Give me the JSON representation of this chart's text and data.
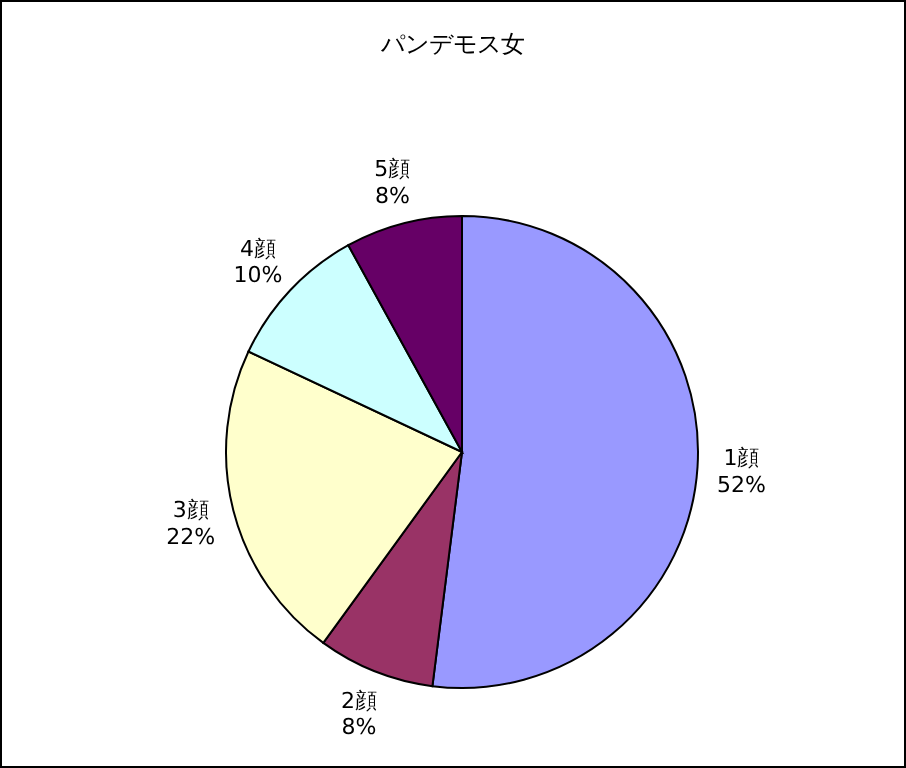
{
  "chart_data": {
    "type": "pie",
    "title": "パンデモス女",
    "categories": [
      "1顔",
      "2顔",
      "3顔",
      "4顔",
      "5顔"
    ],
    "values": [
      52,
      8,
      22,
      10,
      8
    ],
    "value_labels": [
      "52%",
      "8%",
      "22%",
      "10%",
      "8%"
    ],
    "colors": [
      "#9999ff",
      "#993366",
      "#ffffcc",
      "#ccffff",
      "#660066"
    ],
    "legend": false
  }
}
